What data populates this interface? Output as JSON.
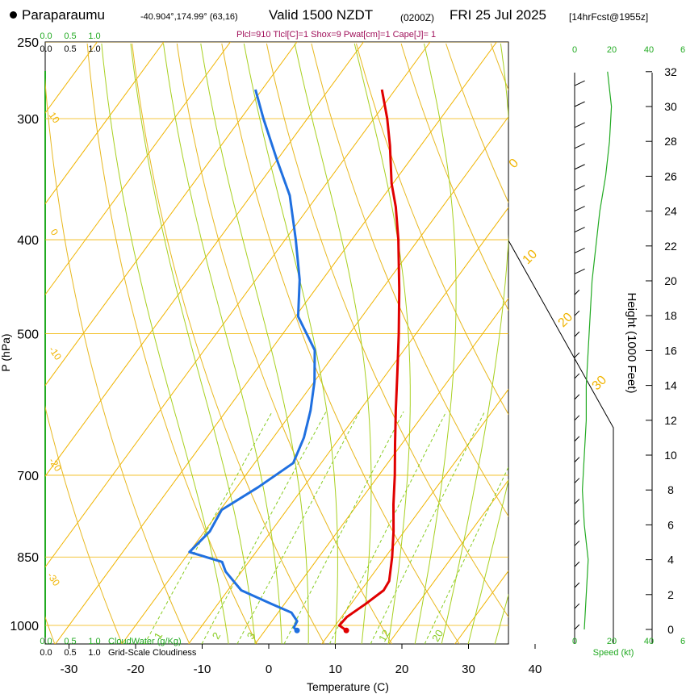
{
  "header": {
    "location": "Paraparaumu",
    "coords": "-40.904°,174.99° (63,16)",
    "valid": "Valid 1500 NZDT",
    "zulu": "(0200Z)",
    "date": "FRI 25 Jul 2025",
    "forecast": "[14hrFcst@1955z]",
    "indices": "Plcl=910 Tlcl[C]=1 Shox=9 Pwat[cm]=1 Cape[J]= 1"
  },
  "colors": {
    "isotherm": "#f0b400",
    "dry_adiabat": "#e8b820",
    "moist_adiabat": "#a8d020",
    "mixing_ratio": "#88cc22",
    "temperature": "#e00000",
    "dewpoint": "#2070e0",
    "green_text": "#22aa22",
    "indices_text": "#a0105a"
  },
  "chart_data": {
    "type": "skew-t",
    "xlabel": "Temperature (C)",
    "ylabel": "P (hPa)",
    "height_label": "Height (1000 Feet)",
    "x_ticks": [
      -30,
      -20,
      -10,
      0,
      10,
      20,
      30,
      40
    ],
    "pressure_levels": [
      250,
      300,
      400,
      500,
      700,
      850,
      1000
    ],
    "height_ticks": [
      0,
      2,
      4,
      6,
      8,
      10,
      12,
      14,
      16,
      18,
      20,
      22,
      24,
      26,
      28,
      30,
      32
    ],
    "dry_adiabat_labels": [
      "0",
      "10",
      "20",
      "30"
    ],
    "isotherm_labels": [
      "10",
      "0",
      "-10",
      "-20",
      "-30"
    ],
    "mixing_ratio_labels": [
      "1",
      "2",
      "3",
      "12",
      "20"
    ],
    "cloudwater_scale": [
      "0.0",
      "0.5",
      "1.0"
    ],
    "cloudwater_label": "CloudWater (g/Kg)",
    "cloudiness_scale": [
      "0.0",
      "0.5",
      "1.0"
    ],
    "cloudiness_label": "Grid-Scale Cloudiness",
    "speed_scale": [
      "0",
      "20",
      "40",
      "6"
    ],
    "speed_label": "Speed (kt)",
    "temperature_profile": [
      {
        "p": 1012,
        "t": 12.2
      },
      {
        "p": 1000,
        "t": 10.6
      },
      {
        "p": 980,
        "t": 10.8
      },
      {
        "p": 950,
        "t": 12.2
      },
      {
        "p": 920,
        "t": 13.4
      },
      {
        "p": 900,
        "t": 13.2
      },
      {
        "p": 850,
        "t": 11.0
      },
      {
        "p": 800,
        "t": 8.4
      },
      {
        "p": 750,
        "t": 5.4
      },
      {
        "p": 700,
        "t": 2.4
      },
      {
        "p": 650,
        "t": -1.0
      },
      {
        "p": 600,
        "t": -4.6
      },
      {
        "p": 550,
        "t": -8.4
      },
      {
        "p": 500,
        "t": -12.6
      },
      {
        "p": 450,
        "t": -17.4
      },
      {
        "p": 400,
        "t": -23.0
      },
      {
        "p": 370,
        "t": -27.0
      },
      {
        "p": 350,
        "t": -30.2
      },
      {
        "p": 320,
        "t": -34.6
      },
      {
        "p": 300,
        "t": -38.0
      },
      {
        "p": 280,
        "t": -42.0
      }
    ],
    "dewpoint_profile": [
      {
        "p": 1012,
        "t": 4.8
      },
      {
        "p": 1005,
        "t": 4.0
      },
      {
        "p": 990,
        "t": 3.8
      },
      {
        "p": 970,
        "t": 2.0
      },
      {
        "p": 950,
        "t": -2.0
      },
      {
        "p": 920,
        "t": -8.0
      },
      {
        "p": 880,
        "t": -12.4
      },
      {
        "p": 860,
        "t": -14.0
      },
      {
        "p": 840,
        "t": -20.0
      },
      {
        "p": 800,
        "t": -19.2
      },
      {
        "p": 760,
        "t": -19.8
      },
      {
        "p": 720,
        "t": -16.8
      },
      {
        "p": 680,
        "t": -14.2
      },
      {
        "p": 640,
        "t": -15.4
      },
      {
        "p": 600,
        "t": -17.4
      },
      {
        "p": 560,
        "t": -20.0
      },
      {
        "p": 520,
        "t": -23.4
      },
      {
        "p": 480,
        "t": -29.6
      },
      {
        "p": 440,
        "t": -33.4
      },
      {
        "p": 400,
        "t": -38.4
      },
      {
        "p": 360,
        "t": -44.2
      },
      {
        "p": 330,
        "t": -50.2
      },
      {
        "p": 300,
        "t": -56.6
      },
      {
        "p": 280,
        "t": -61.0
      }
    ],
    "wind_speed_profile": [
      {
        "h": 0,
        "kt": 5
      },
      {
        "h": 2,
        "kt": 6
      },
      {
        "h": 4,
        "kt": 7
      },
      {
        "h": 6,
        "kt": 5
      },
      {
        "h": 8,
        "kt": 4
      },
      {
        "h": 10,
        "kt": 5
      },
      {
        "h": 12,
        "kt": 6
      },
      {
        "h": 14,
        "kt": 6
      },
      {
        "h": 16,
        "kt": 7
      },
      {
        "h": 18,
        "kt": 8
      },
      {
        "h": 20,
        "kt": 9
      },
      {
        "h": 22,
        "kt": 11
      },
      {
        "h": 24,
        "kt": 13
      },
      {
        "h": 26,
        "kt": 16
      },
      {
        "h": 28,
        "kt": 18
      },
      {
        "h": 30,
        "kt": 19
      },
      {
        "h": 32,
        "kt": 17
      }
    ]
  }
}
